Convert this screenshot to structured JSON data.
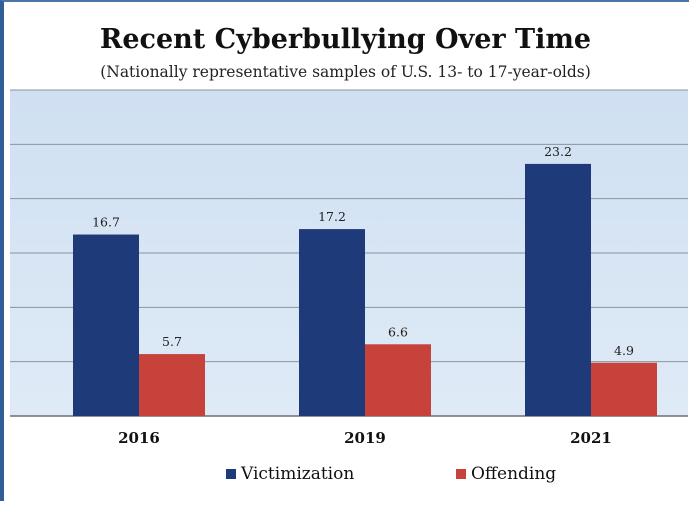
{
  "chart_data": {
    "type": "bar",
    "title": "Recent Cyberbullying Over Time",
    "subtitle": "(Nationally representative samples of U.S. 13- to 17-year-olds)",
    "categories": [
      "2016",
      "2019",
      "2021"
    ],
    "series": [
      {
        "name": "Victimization",
        "values": [
          16.7,
          17.2,
          23.2
        ],
        "color": "#1e3a78"
      },
      {
        "name": "Offending",
        "values": [
          5.7,
          6.6,
          4.9
        ],
        "color": "#c8423c"
      }
    ],
    "ylim": [
      0,
      30
    ],
    "grid": true,
    "legend_position": "bottom"
  }
}
